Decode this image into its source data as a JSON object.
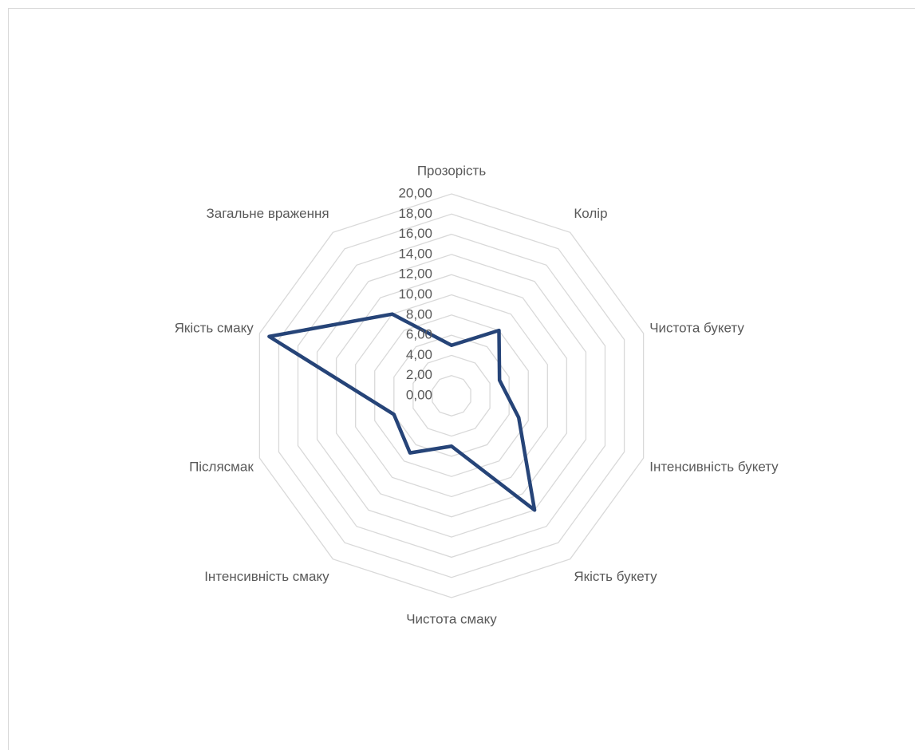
{
  "chart_data": {
    "type": "radar",
    "categories": [
      "Прозорість",
      "Колір",
      "Чистота букету",
      "Інтенсивність букету",
      "Якість букету",
      "Чистота смаку",
      "Інтенсивність смаку",
      "Післясмак",
      "Якість смаку",
      "Загальне враження"
    ],
    "series": [
      {
        "name": null,
        "color": "#264478",
        "values": [
          5,
          8,
          5,
          7,
          14,
          5,
          7,
          6,
          19,
          10
        ]
      }
    ],
    "ylim": [
      0,
      20
    ],
    "yticks": [
      {
        "value": 0,
        "label": "0,00"
      },
      {
        "value": 2,
        "label": "2,00"
      },
      {
        "value": 4,
        "label": "4,00"
      },
      {
        "value": 6,
        "label": "6,00"
      },
      {
        "value": 8,
        "label": "8,00"
      },
      {
        "value": 10,
        "label": "10,00"
      },
      {
        "value": 12,
        "label": "12,00"
      },
      {
        "value": 14,
        "label": "14,00"
      },
      {
        "value": 16,
        "label": "16,00"
      },
      {
        "value": 18,
        "label": "18,00"
      },
      {
        "value": 20,
        "label": "20,00"
      }
    ],
    "grid": true
  }
}
